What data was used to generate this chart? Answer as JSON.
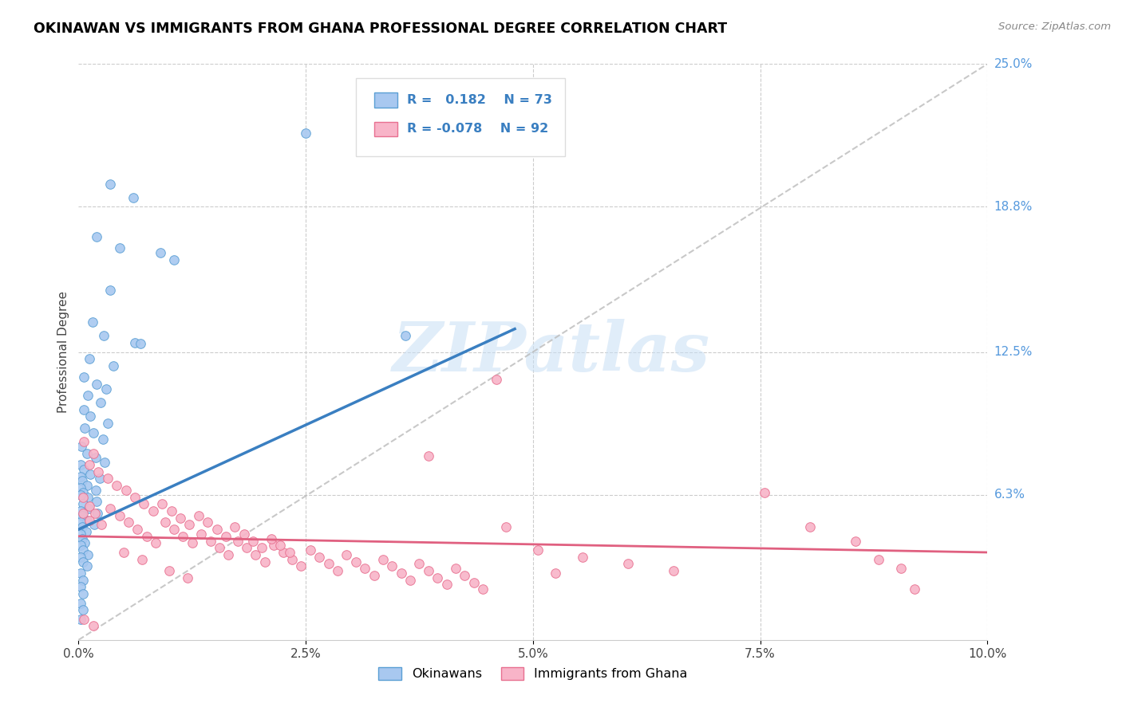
{
  "title": "OKINAWAN VS IMMIGRANTS FROM GHANA PROFESSIONAL DEGREE CORRELATION CHART",
  "source": "Source: ZipAtlas.com",
  "xlabel_vals": [
    0.0,
    2.5,
    5.0,
    7.5,
    10.0
  ],
  "ylabel_vals": [
    0.0,
    6.3,
    12.5,
    18.8,
    25.0
  ],
  "ylabel_labels": [
    "",
    "6.3%",
    "12.5%",
    "18.8%",
    "25.0%"
  ],
  "xlim": [
    0.0,
    10.0
  ],
  "ylim": [
    0.0,
    25.0
  ],
  "blue_fill": "#A8C8F0",
  "blue_edge": "#5A9FD4",
  "pink_fill": "#F8B4C8",
  "pink_edge": "#E87090",
  "blue_line_color": "#3A7FC1",
  "pink_line_color": "#E06080",
  "gray_dashed_color": "#BBBBBB",
  "label1": "Okinawans",
  "label2": "Immigrants from Ghana",
  "watermark": "ZIPatlas",
  "blue_R": 0.182,
  "blue_N": 73,
  "pink_R": -0.078,
  "pink_N": 92,
  "blue_line_x": [
    0.0,
    4.8
  ],
  "blue_line_y": [
    4.8,
    13.5
  ],
  "pink_line_x": [
    0.0,
    10.0
  ],
  "pink_line_y": [
    4.5,
    3.8
  ],
  "blue_scatter": [
    [
      2.5,
      22.0
    ],
    [
      0.35,
      19.8
    ],
    [
      0.6,
      19.2
    ],
    [
      0.2,
      17.5
    ],
    [
      0.45,
      17.0
    ],
    [
      0.9,
      16.8
    ],
    [
      1.05,
      16.5
    ],
    [
      0.35,
      15.2
    ],
    [
      0.15,
      13.8
    ],
    [
      0.28,
      13.2
    ],
    [
      0.62,
      12.9
    ],
    [
      0.68,
      12.85
    ],
    [
      0.12,
      12.2
    ],
    [
      0.38,
      11.9
    ],
    [
      0.06,
      11.4
    ],
    [
      0.2,
      11.1
    ],
    [
      0.3,
      10.9
    ],
    [
      0.1,
      10.6
    ],
    [
      0.24,
      10.3
    ],
    [
      0.06,
      10.0
    ],
    [
      0.13,
      9.7
    ],
    [
      0.32,
      9.4
    ],
    [
      0.07,
      9.2
    ],
    [
      0.16,
      9.0
    ],
    [
      0.27,
      8.7
    ],
    [
      0.03,
      8.4
    ],
    [
      0.09,
      8.1
    ],
    [
      0.19,
      7.9
    ],
    [
      0.29,
      7.7
    ],
    [
      0.02,
      7.6
    ],
    [
      0.06,
      7.4
    ],
    [
      0.13,
      7.2
    ],
    [
      0.23,
      7.0
    ],
    [
      0.02,
      7.1
    ],
    [
      0.04,
      6.9
    ],
    [
      0.09,
      6.7
    ],
    [
      0.19,
      6.5
    ],
    [
      0.02,
      6.6
    ],
    [
      0.05,
      6.4
    ],
    [
      0.1,
      6.2
    ],
    [
      0.2,
      6.0
    ],
    [
      0.02,
      6.3
    ],
    [
      0.05,
      5.9
    ],
    [
      0.11,
      5.7
    ],
    [
      0.21,
      5.5
    ],
    [
      0.02,
      5.6
    ],
    [
      0.04,
      5.4
    ],
    [
      0.09,
      5.2
    ],
    [
      0.17,
      5.0
    ],
    [
      0.02,
      5.1
    ],
    [
      0.04,
      4.9
    ],
    [
      0.08,
      4.7
    ],
    [
      0.02,
      4.6
    ],
    [
      0.04,
      4.4
    ],
    [
      0.07,
      4.2
    ],
    [
      0.02,
      4.1
    ],
    [
      0.05,
      3.9
    ],
    [
      0.1,
      3.7
    ],
    [
      0.02,
      3.6
    ],
    [
      0.05,
      3.4
    ],
    [
      0.09,
      3.2
    ],
    [
      0.02,
      2.9
    ],
    [
      0.05,
      2.6
    ],
    [
      0.02,
      2.3
    ],
    [
      0.05,
      2.0
    ],
    [
      0.02,
      1.6
    ],
    [
      0.05,
      1.3
    ],
    [
      0.02,
      0.9
    ],
    [
      3.6,
      13.2
    ]
  ],
  "pink_scatter": [
    [
      0.05,
      6.2
    ],
    [
      0.12,
      5.8
    ],
    [
      0.18,
      5.5
    ],
    [
      0.05,
      5.5
    ],
    [
      0.12,
      5.2
    ],
    [
      0.25,
      5.0
    ],
    [
      0.35,
      5.7
    ],
    [
      0.45,
      5.4
    ],
    [
      0.55,
      5.1
    ],
    [
      0.65,
      4.8
    ],
    [
      0.75,
      4.5
    ],
    [
      0.85,
      4.2
    ],
    [
      0.95,
      5.1
    ],
    [
      1.05,
      4.8
    ],
    [
      1.15,
      4.5
    ],
    [
      1.25,
      4.2
    ],
    [
      1.35,
      4.6
    ],
    [
      1.45,
      4.3
    ],
    [
      1.55,
      4.0
    ],
    [
      1.65,
      3.7
    ],
    [
      1.75,
      4.3
    ],
    [
      1.85,
      4.0
    ],
    [
      1.95,
      3.7
    ],
    [
      2.05,
      3.4
    ],
    [
      2.15,
      4.1
    ],
    [
      2.25,
      3.8
    ],
    [
      2.35,
      3.5
    ],
    [
      2.45,
      3.2
    ],
    [
      2.55,
      3.9
    ],
    [
      2.65,
      3.6
    ],
    [
      2.75,
      3.3
    ],
    [
      2.85,
      3.0
    ],
    [
      2.95,
      3.7
    ],
    [
      3.05,
      3.4
    ],
    [
      3.15,
      3.1
    ],
    [
      3.25,
      2.8
    ],
    [
      3.35,
      3.5
    ],
    [
      3.45,
      3.2
    ],
    [
      3.55,
      2.9
    ],
    [
      3.65,
      2.6
    ],
    [
      3.75,
      3.3
    ],
    [
      3.85,
      3.0
    ],
    [
      3.95,
      2.7
    ],
    [
      4.05,
      2.4
    ],
    [
      4.15,
      3.1
    ],
    [
      4.25,
      2.8
    ],
    [
      4.35,
      2.5
    ],
    [
      4.45,
      2.2
    ],
    [
      4.6,
      11.3
    ],
    [
      3.85,
      8.0
    ],
    [
      4.7,
      4.9
    ],
    [
      5.05,
      3.9
    ],
    [
      5.25,
      2.9
    ],
    [
      5.55,
      3.6
    ],
    [
      6.05,
      3.3
    ],
    [
      6.55,
      3.0
    ],
    [
      7.55,
      6.4
    ],
    [
      8.05,
      4.9
    ],
    [
      8.55,
      4.3
    ],
    [
      9.05,
      3.1
    ],
    [
      0.12,
      7.6
    ],
    [
      0.22,
      7.3
    ],
    [
      0.32,
      7.0
    ],
    [
      0.42,
      6.7
    ],
    [
      0.52,
      6.5
    ],
    [
      0.62,
      6.2
    ],
    [
      0.72,
      5.9
    ],
    [
      0.82,
      5.6
    ],
    [
      0.92,
      5.9
    ],
    [
      1.02,
      5.6
    ],
    [
      1.12,
      5.3
    ],
    [
      1.22,
      5.0
    ],
    [
      1.32,
      5.4
    ],
    [
      1.42,
      5.1
    ],
    [
      1.52,
      4.8
    ],
    [
      1.62,
      4.5
    ],
    [
      1.72,
      4.9
    ],
    [
      1.82,
      4.6
    ],
    [
      1.92,
      4.3
    ],
    [
      2.02,
      4.0
    ],
    [
      2.12,
      4.4
    ],
    [
      2.22,
      4.1
    ],
    [
      2.32,
      3.8
    ],
    [
      0.06,
      0.9
    ],
    [
      0.16,
      0.6
    ],
    [
      0.06,
      8.6
    ],
    [
      0.16,
      8.1
    ],
    [
      1.0,
      3.0
    ],
    [
      1.2,
      2.7
    ],
    [
      0.5,
      3.8
    ],
    [
      0.7,
      3.5
    ],
    [
      8.8,
      3.5
    ],
    [
      9.2,
      2.2
    ]
  ]
}
